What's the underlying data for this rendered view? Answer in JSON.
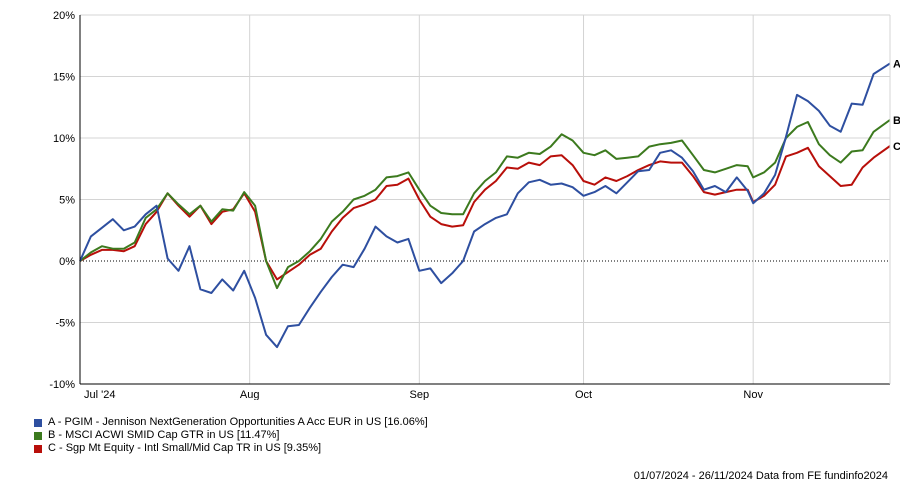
{
  "chart_data": {
    "type": "line",
    "title": "",
    "xlabel": "",
    "ylabel": "",
    "ylim": [
      -10,
      20
    ],
    "yticks": [
      -10,
      -5,
      0,
      5,
      10,
      15,
      20
    ],
    "ytick_labels": [
      "-10%",
      "-5%",
      "0%",
      "5%",
      "10%",
      "15%",
      "20%"
    ],
    "xlim": [
      "2024-07-01",
      "2024-11-26"
    ],
    "xticks": [
      {
        "label": "Jul '24",
        "date": "2024-07-01"
      },
      {
        "label": "Aug",
        "date": "2024-08-01"
      },
      {
        "label": "Sep",
        "date": "2024-09-01"
      },
      {
        "label": "Oct",
        "date": "2024-10-01"
      },
      {
        "label": "Nov",
        "date": "2024-11-01"
      }
    ],
    "grid": true,
    "zero_line": "dotted",
    "series": [
      {
        "name": "A - PGIM - Jennison NextGeneration Opportunities A Acc EUR in US [16.06%]",
        "end_label": "A",
        "color": "#2e4fa0",
        "points": [
          [
            "2024-07-01",
            0
          ],
          [
            "2024-07-03",
            2
          ],
          [
            "2024-07-05",
            2.7
          ],
          [
            "2024-07-07",
            3.4
          ],
          [
            "2024-07-09",
            2.5
          ],
          [
            "2024-07-11",
            2.8
          ],
          [
            "2024-07-13",
            3.8
          ],
          [
            "2024-07-15",
            4.5
          ],
          [
            "2024-07-17",
            0.2
          ],
          [
            "2024-07-19",
            -0.8
          ],
          [
            "2024-07-21",
            1.2
          ],
          [
            "2024-07-23",
            -2.3
          ],
          [
            "2024-07-25",
            -2.6
          ],
          [
            "2024-07-27",
            -1.5
          ],
          [
            "2024-07-29",
            -2.4
          ],
          [
            "2024-07-31",
            -0.8
          ],
          [
            "2024-08-02",
            -3
          ],
          [
            "2024-08-04",
            -6
          ],
          [
            "2024-08-06",
            -7
          ],
          [
            "2024-08-08",
            -5.3
          ],
          [
            "2024-08-10",
            -5.2
          ],
          [
            "2024-08-12",
            -3.8
          ],
          [
            "2024-08-14",
            -2.5
          ],
          [
            "2024-08-16",
            -1.3
          ],
          [
            "2024-08-18",
            -0.3
          ],
          [
            "2024-08-20",
            -0.5
          ],
          [
            "2024-08-22",
            1
          ],
          [
            "2024-08-24",
            2.8
          ],
          [
            "2024-08-26",
            2
          ],
          [
            "2024-08-28",
            1.5
          ],
          [
            "2024-08-30",
            1.8
          ],
          [
            "2024-09-01",
            -0.8
          ],
          [
            "2024-09-03",
            -0.6
          ],
          [
            "2024-09-05",
            -1.8
          ],
          [
            "2024-09-07",
            -1
          ],
          [
            "2024-09-09",
            0
          ],
          [
            "2024-09-11",
            2.4
          ],
          [
            "2024-09-13",
            3
          ],
          [
            "2024-09-15",
            3.5
          ],
          [
            "2024-09-17",
            3.8
          ],
          [
            "2024-09-19",
            5.5
          ],
          [
            "2024-09-21",
            6.4
          ],
          [
            "2024-09-23",
            6.6
          ],
          [
            "2024-09-25",
            6.2
          ],
          [
            "2024-09-27",
            6.3
          ],
          [
            "2024-09-29",
            6
          ],
          [
            "2024-10-01",
            5.3
          ],
          [
            "2024-10-03",
            5.6
          ],
          [
            "2024-10-05",
            6.1
          ],
          [
            "2024-10-07",
            5.5
          ],
          [
            "2024-10-09",
            6.4
          ],
          [
            "2024-10-11",
            7.3
          ],
          [
            "2024-10-13",
            7.4
          ],
          [
            "2024-10-15",
            8.8
          ],
          [
            "2024-10-17",
            9
          ],
          [
            "2024-10-19",
            8.4
          ],
          [
            "2024-10-21",
            7.3
          ],
          [
            "2024-10-23",
            5.8
          ],
          [
            "2024-10-25",
            6.1
          ],
          [
            "2024-10-27",
            5.6
          ],
          [
            "2024-10-29",
            6.8
          ],
          [
            "2024-10-31",
            5.7
          ],
          [
            "2024-11-01",
            4.7
          ],
          [
            "2024-11-03",
            5.5
          ],
          [
            "2024-11-05",
            7
          ],
          [
            "2024-11-07",
            10.1
          ],
          [
            "2024-11-09",
            13.5
          ],
          [
            "2024-11-11",
            13
          ],
          [
            "2024-11-13",
            12.2
          ],
          [
            "2024-11-15",
            11
          ],
          [
            "2024-11-17",
            10.5
          ],
          [
            "2024-11-19",
            12.8
          ],
          [
            "2024-11-21",
            12.7
          ],
          [
            "2024-11-23",
            15.2
          ],
          [
            "2024-11-26",
            16.06
          ]
        ]
      },
      {
        "name": "B - MSCI ACWI SMID Cap GTR in US [11.47%]",
        "end_label": "B",
        "color": "#3c7a1e",
        "points": [
          [
            "2024-07-01",
            0
          ],
          [
            "2024-07-03",
            0.7
          ],
          [
            "2024-07-05",
            1.2
          ],
          [
            "2024-07-07",
            1
          ],
          [
            "2024-07-09",
            1
          ],
          [
            "2024-07-11",
            1.5
          ],
          [
            "2024-07-13",
            3.5
          ],
          [
            "2024-07-15",
            4.2
          ],
          [
            "2024-07-17",
            5.5
          ],
          [
            "2024-07-19",
            4.6
          ],
          [
            "2024-07-21",
            3.8
          ],
          [
            "2024-07-23",
            4.5
          ],
          [
            "2024-07-25",
            3.2
          ],
          [
            "2024-07-27",
            4.2
          ],
          [
            "2024-07-29",
            4.1
          ],
          [
            "2024-07-31",
            5.6
          ],
          [
            "2024-08-02",
            4.5
          ],
          [
            "2024-08-04",
            0
          ],
          [
            "2024-08-06",
            -2.2
          ],
          [
            "2024-08-08",
            -0.5
          ],
          [
            "2024-08-10",
            0
          ],
          [
            "2024-08-12",
            0.8
          ],
          [
            "2024-08-14",
            1.8
          ],
          [
            "2024-08-16",
            3.2
          ],
          [
            "2024-08-18",
            4
          ],
          [
            "2024-08-20",
            5
          ],
          [
            "2024-08-22",
            5.3
          ],
          [
            "2024-08-24",
            5.8
          ],
          [
            "2024-08-26",
            6.8
          ],
          [
            "2024-08-28",
            6.9
          ],
          [
            "2024-08-30",
            7.2
          ],
          [
            "2024-09-01",
            5.8
          ],
          [
            "2024-09-03",
            4.5
          ],
          [
            "2024-09-05",
            3.9
          ],
          [
            "2024-09-07",
            3.8
          ],
          [
            "2024-09-09",
            3.8
          ],
          [
            "2024-09-11",
            5.5
          ],
          [
            "2024-09-13",
            6.5
          ],
          [
            "2024-09-15",
            7.2
          ],
          [
            "2024-09-17",
            8.5
          ],
          [
            "2024-09-19",
            8.4
          ],
          [
            "2024-09-21",
            8.8
          ],
          [
            "2024-09-23",
            8.7
          ],
          [
            "2024-09-25",
            9.3
          ],
          [
            "2024-09-27",
            10.3
          ],
          [
            "2024-09-29",
            9.8
          ],
          [
            "2024-10-01",
            8.8
          ],
          [
            "2024-10-03",
            8.6
          ],
          [
            "2024-10-05",
            9
          ],
          [
            "2024-10-07",
            8.3
          ],
          [
            "2024-10-09",
            8.4
          ],
          [
            "2024-10-11",
            8.5
          ],
          [
            "2024-10-13",
            9.3
          ],
          [
            "2024-10-15",
            9.5
          ],
          [
            "2024-10-17",
            9.6
          ],
          [
            "2024-10-19",
            9.8
          ],
          [
            "2024-10-21",
            8.6
          ],
          [
            "2024-10-23",
            7.4
          ],
          [
            "2024-10-25",
            7.2
          ],
          [
            "2024-10-27",
            7.5
          ],
          [
            "2024-10-29",
            7.8
          ],
          [
            "2024-10-31",
            7.7
          ],
          [
            "2024-11-01",
            6.8
          ],
          [
            "2024-11-03",
            7.2
          ],
          [
            "2024-11-05",
            8
          ],
          [
            "2024-11-07",
            10
          ],
          [
            "2024-11-09",
            10.9
          ],
          [
            "2024-11-11",
            11.3
          ],
          [
            "2024-11-13",
            9.5
          ],
          [
            "2024-11-15",
            8.6
          ],
          [
            "2024-11-17",
            8
          ],
          [
            "2024-11-19",
            8.9
          ],
          [
            "2024-11-21",
            9
          ],
          [
            "2024-11-23",
            10.5
          ],
          [
            "2024-11-26",
            11.47
          ]
        ]
      },
      {
        "name": "C - Sgp Mt Equity - Intl Small/Mid Cap TR in US [9.35%]",
        "end_label": "C",
        "color": "#b80f0a",
        "points": [
          [
            "2024-07-01",
            0
          ],
          [
            "2024-07-03",
            0.5
          ],
          [
            "2024-07-05",
            0.9
          ],
          [
            "2024-07-07",
            0.9
          ],
          [
            "2024-07-09",
            0.8
          ],
          [
            "2024-07-11",
            1.2
          ],
          [
            "2024-07-13",
            3
          ],
          [
            "2024-07-15",
            4
          ],
          [
            "2024-07-17",
            5.5
          ],
          [
            "2024-07-19",
            4.5
          ],
          [
            "2024-07-21",
            3.6
          ],
          [
            "2024-07-23",
            4.5
          ],
          [
            "2024-07-25",
            3
          ],
          [
            "2024-07-27",
            4
          ],
          [
            "2024-07-29",
            4.2
          ],
          [
            "2024-07-31",
            5.5
          ],
          [
            "2024-08-02",
            4
          ],
          [
            "2024-08-04",
            0
          ],
          [
            "2024-08-06",
            -1.5
          ],
          [
            "2024-08-08",
            -0.9
          ],
          [
            "2024-08-10",
            -0.3
          ],
          [
            "2024-08-12",
            0.5
          ],
          [
            "2024-08-14",
            1
          ],
          [
            "2024-08-16",
            2.4
          ],
          [
            "2024-08-18",
            3.5
          ],
          [
            "2024-08-20",
            4.3
          ],
          [
            "2024-08-22",
            4.6
          ],
          [
            "2024-08-24",
            5
          ],
          [
            "2024-08-26",
            6.1
          ],
          [
            "2024-08-28",
            6.2
          ],
          [
            "2024-08-30",
            6.7
          ],
          [
            "2024-09-01",
            5
          ],
          [
            "2024-09-03",
            3.6
          ],
          [
            "2024-09-05",
            3
          ],
          [
            "2024-09-07",
            2.8
          ],
          [
            "2024-09-09",
            2.9
          ],
          [
            "2024-09-11",
            4.8
          ],
          [
            "2024-09-13",
            5.8
          ],
          [
            "2024-09-15",
            6.5
          ],
          [
            "2024-09-17",
            7.6
          ],
          [
            "2024-09-19",
            7.5
          ],
          [
            "2024-09-21",
            8
          ],
          [
            "2024-09-23",
            7.8
          ],
          [
            "2024-09-25",
            8.5
          ],
          [
            "2024-09-27",
            8.6
          ],
          [
            "2024-09-29",
            7.8
          ],
          [
            "2024-10-01",
            6.5
          ],
          [
            "2024-10-03",
            6.2
          ],
          [
            "2024-10-05",
            6.8
          ],
          [
            "2024-10-07",
            6.5
          ],
          [
            "2024-10-09",
            6.9
          ],
          [
            "2024-10-11",
            7.4
          ],
          [
            "2024-10-13",
            7.8
          ],
          [
            "2024-10-15",
            8.1
          ],
          [
            "2024-10-17",
            8
          ],
          [
            "2024-10-19",
            8
          ],
          [
            "2024-10-21",
            6.9
          ],
          [
            "2024-10-23",
            5.6
          ],
          [
            "2024-10-25",
            5.4
          ],
          [
            "2024-10-27",
            5.6
          ],
          [
            "2024-10-29",
            5.8
          ],
          [
            "2024-10-31",
            5.8
          ],
          [
            "2024-11-01",
            4.8
          ],
          [
            "2024-11-03",
            5.3
          ],
          [
            "2024-11-05",
            6.2
          ],
          [
            "2024-11-07",
            8.5
          ],
          [
            "2024-11-09",
            8.8
          ],
          [
            "2024-11-11",
            9.2
          ],
          [
            "2024-11-13",
            7.7
          ],
          [
            "2024-11-15",
            6.9
          ],
          [
            "2024-11-17",
            6.1
          ],
          [
            "2024-11-19",
            6.2
          ],
          [
            "2024-11-21",
            7.6
          ],
          [
            "2024-11-23",
            8.4
          ],
          [
            "2024-11-26",
            9.35
          ]
        ]
      }
    ]
  },
  "footer": {
    "text": "01/07/2024 - 26/11/2024 Data from FE fundinfo2024"
  }
}
